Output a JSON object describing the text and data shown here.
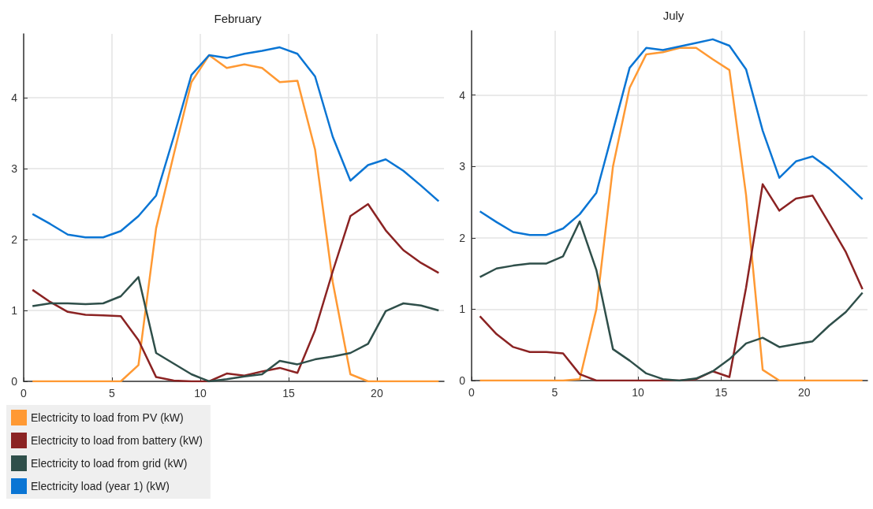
{
  "chart_data": [
    {
      "type": "line",
      "title": "February",
      "x": [
        0.5,
        1.5,
        2.5,
        3.5,
        4.5,
        5.5,
        6.5,
        7.5,
        8.5,
        9.5,
        10.5,
        11.5,
        12.5,
        13.5,
        14.5,
        15.5,
        16.5,
        17.5,
        18.5,
        19.5,
        20.5,
        21.5,
        22.5,
        23.5
      ],
      "xlim": [
        0,
        23.8
      ],
      "xticks": [
        0,
        5,
        10,
        15,
        20
      ],
      "ylim": [
        0,
        4.9
      ],
      "yticks": [
        0,
        1,
        2,
        3,
        4
      ],
      "grid": true,
      "legend": "bottom left",
      "series": [
        {
          "name": "Electricity to load from PV (kW)",
          "color": "#ff9933",
          "values": [
            0,
            0,
            0,
            0,
            0,
            0,
            0.23,
            2.16,
            3.2,
            4.22,
            4.6,
            4.42,
            4.47,
            4.42,
            4.22,
            4.24,
            3.27,
            1.4,
            0.1,
            0,
            0,
            0,
            0,
            0
          ]
        },
        {
          "name": "Electricity to load from battery (kW)",
          "color": "#8b2323",
          "values": [
            1.29,
            1.12,
            0.98,
            0.94,
            0.93,
            0.92,
            0.58,
            0.06,
            0.01,
            0,
            0,
            0.11,
            0.08,
            0.14,
            0.19,
            0.12,
            0.72,
            1.55,
            2.33,
            2.5,
            2.13,
            1.85,
            1.67,
            1.53
          ]
        },
        {
          "name": "Electricity to load from grid (kW)",
          "color": "#2f4f4a",
          "values": [
            1.06,
            1.1,
            1.1,
            1.09,
            1.1,
            1.2,
            1.47,
            0.4,
            0.25,
            0.1,
            0,
            0.03,
            0.07,
            0.1,
            0.29,
            0.24,
            0.31,
            0.35,
            0.4,
            0.53,
            0.99,
            1.1,
            1.07,
            1.0
          ]
        },
        {
          "name": "Electricity load (year 1) (kW)",
          "color": "#0a75d4",
          "values": [
            2.36,
            2.22,
            2.07,
            2.03,
            2.03,
            2.12,
            2.33,
            2.62,
            3.45,
            4.32,
            4.6,
            4.56,
            4.62,
            4.66,
            4.71,
            4.62,
            4.3,
            3.45,
            2.83,
            3.05,
            3.13,
            2.97,
            2.76,
            2.54
          ]
        }
      ]
    },
    {
      "type": "line",
      "title": "July",
      "x": [
        0.5,
        1.5,
        2.5,
        3.5,
        4.5,
        5.5,
        6.5,
        7.5,
        8.5,
        9.5,
        10.5,
        11.5,
        12.5,
        13.5,
        14.5,
        15.5,
        16.5,
        17.5,
        18.5,
        19.5,
        20.5,
        21.5,
        22.5,
        23.5
      ],
      "xlim": [
        0,
        23.8
      ],
      "xticks": [
        0,
        5,
        10,
        15,
        20
      ],
      "ylim": [
        0,
        4.9
      ],
      "yticks": [
        0,
        1,
        2,
        3,
        4
      ],
      "grid": true,
      "series": [
        {
          "color": "#ff9933",
          "values": [
            0,
            0,
            0,
            0,
            0,
            0,
            0.02,
            1.0,
            3.0,
            4.1,
            4.57,
            4.6,
            4.66,
            4.66,
            4.5,
            4.35,
            2.6,
            0.15,
            0,
            0,
            0,
            0,
            0,
            0
          ]
        },
        {
          "color": "#8b2323",
          "values": [
            0.9,
            0.65,
            0.47,
            0.4,
            0.4,
            0.38,
            0.09,
            0,
            0,
            0,
            0,
            0,
            0,
            0.02,
            0.13,
            0.05,
            1.3,
            2.75,
            2.38,
            2.55,
            2.59,
            2.2,
            1.8,
            1.28
          ]
        },
        {
          "color": "#2f4f4a",
          "values": [
            1.45,
            1.57,
            1.61,
            1.64,
            1.64,
            1.74,
            2.23,
            1.55,
            0.44,
            0.28,
            0.1,
            0.02,
            0,
            0.03,
            0.13,
            0.3,
            0.52,
            0.6,
            0.47,
            0.51,
            0.55,
            0.77,
            0.96,
            1.23
          ]
        },
        {
          "color": "#0a75d4",
          "values": [
            2.37,
            2.22,
            2.08,
            2.04,
            2.04,
            2.13,
            2.33,
            2.63,
            3.5,
            4.38,
            4.66,
            4.63,
            4.68,
            4.73,
            4.78,
            4.69,
            4.36,
            3.5,
            2.84,
            3.07,
            3.14,
            2.97,
            2.76,
            2.54
          ]
        }
      ]
    }
  ]
}
